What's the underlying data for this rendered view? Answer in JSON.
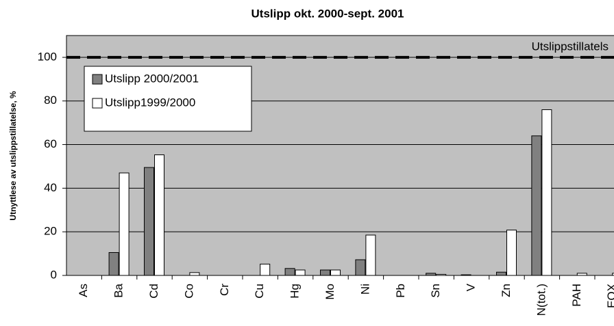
{
  "chart_data": {
    "type": "bar",
    "title": "Utslipp okt. 2000-sept. 2001",
    "y_label": "Utnyttlese av utslippstillatelse, %",
    "categories": [
      "As",
      "Ba",
      "Cd",
      "Co",
      "Cr",
      "Cu",
      "Hg",
      "Mo",
      "Ni",
      "Pb",
      "Sn",
      "V",
      "Zn",
      "N(tot.)",
      "PAH",
      "EOX"
    ],
    "series": [
      {
        "name": "Utslipp 2000/2001",
        "color": "#808080",
        "values": [
          0,
          10.5,
          49.5,
          0,
          0,
          0,
          3.2,
          2.5,
          7.2,
          0,
          1.0,
          0.3,
          1.5,
          64,
          0,
          0
        ]
      },
      {
        "name": "Utslipp1999/2000",
        "color": "#ffffff",
        "values": [
          0,
          47,
          55.3,
          1.3,
          0,
          5.2,
          2.5,
          2.5,
          18.5,
          0,
          0.5,
          0,
          20.8,
          76,
          1.0,
          1.0
        ]
      }
    ],
    "reference_line": {
      "value": 100,
      "label": "Utslippstillatels"
    },
    "ylim": [
      0,
      110
    ],
    "yticks": [
      0,
      20,
      40,
      60,
      80,
      100
    ],
    "grid": true,
    "plot_background": "#c0c0c0"
  }
}
